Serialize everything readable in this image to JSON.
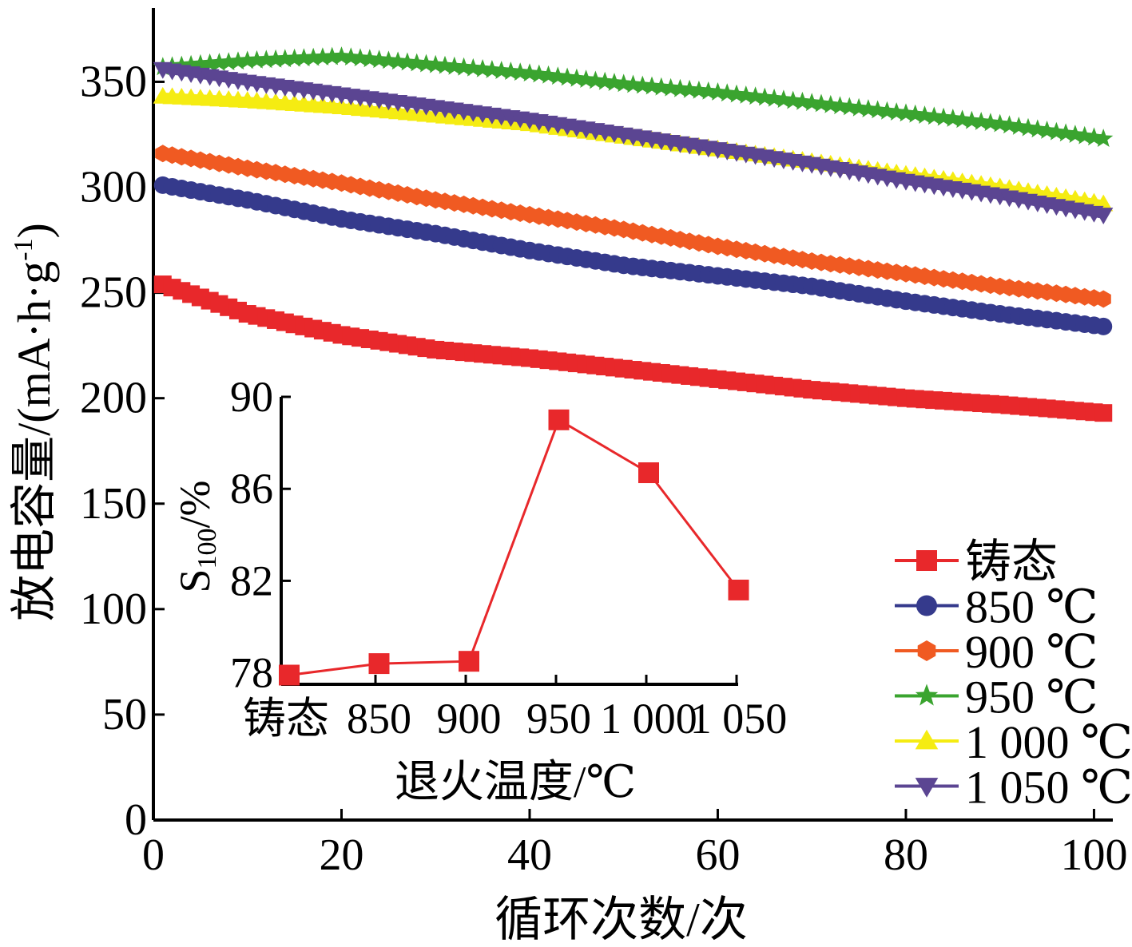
{
  "colors": {
    "as_cast": "#e8282b",
    "t850": "#353a8c",
    "t900": "#f05a22",
    "t950": "#3aa42f",
    "t1000": "#f5ec12",
    "t1050": "#5b4592",
    "axis": "#000000"
  },
  "chart_data": [
    {
      "type": "line",
      "xlabel": "循环次数/次",
      "ylabel": "放电容量/(mA·h·g",
      "ylabel_sup": "-1",
      "ylabel_close": ")",
      "xlim": [
        0,
        102
      ],
      "ylim": [
        0,
        385
      ],
      "xticks": [
        0,
        20,
        40,
        60,
        80,
        100
      ],
      "yticks": [
        0,
        50,
        100,
        150,
        200,
        250,
        300,
        350
      ],
      "x": [
        1,
        10,
        20,
        30,
        40,
        50,
        60,
        70,
        80,
        90,
        101
      ],
      "legend_position": "bottom-right",
      "series": [
        {
          "name": "铸态",
          "marker": "square",
          "color_key": "as_cast",
          "values": [
            254,
            240,
            230,
            223,
            219,
            214,
            209,
            204,
            200,
            197,
            193
          ]
        },
        {
          "name": "850 ℃",
          "marker": "circle",
          "color_key": "t850",
          "values": [
            301,
            294,
            285,
            278,
            270,
            263,
            258,
            253,
            246,
            240,
            234
          ]
        },
        {
          "name": "900 ℃",
          "marker": "hexagon",
          "color_key": "t900",
          "values": [
            316,
            309,
            302,
            294,
            287,
            280,
            272,
            265,
            259,
            253,
            247
          ]
        },
        {
          "name": "950 ℃",
          "marker": "star",
          "color_key": "t950",
          "values": [
            357,
            360,
            362,
            358,
            354,
            349,
            345,
            340,
            335,
            330,
            323
          ]
        },
        {
          "name": "1 000 ℃",
          "marker": "triangle-up",
          "color_key": "t1000",
          "values": [
            343,
            341,
            338,
            334,
            330,
            324,
            318,
            312,
            306,
            300,
            292
          ]
        },
        {
          "name": "1 050 ℃",
          "marker": "triangle-down",
          "color_key": "t1050",
          "values": [
            356,
            350,
            344,
            338,
            332,
            325,
            318,
            311,
            303,
            296,
            287
          ]
        }
      ]
    },
    {
      "type": "line",
      "xlabel": "退火温度/℃",
      "ylabel_main": "S",
      "ylabel_sub": "100",
      "ylabel_rest": "/%",
      "categories": [
        "铸态",
        "850",
        "900",
        "950",
        "1 000",
        "1 050"
      ],
      "ylim": [
        77.5,
        90
      ],
      "yticks": [
        78,
        82,
        86,
        90
      ],
      "series": [
        {
          "name": "",
          "marker": "square",
          "color_key": "as_cast",
          "values": [
            77.9,
            78.4,
            78.5,
            89.0,
            86.7,
            81.6
          ]
        }
      ]
    }
  ]
}
